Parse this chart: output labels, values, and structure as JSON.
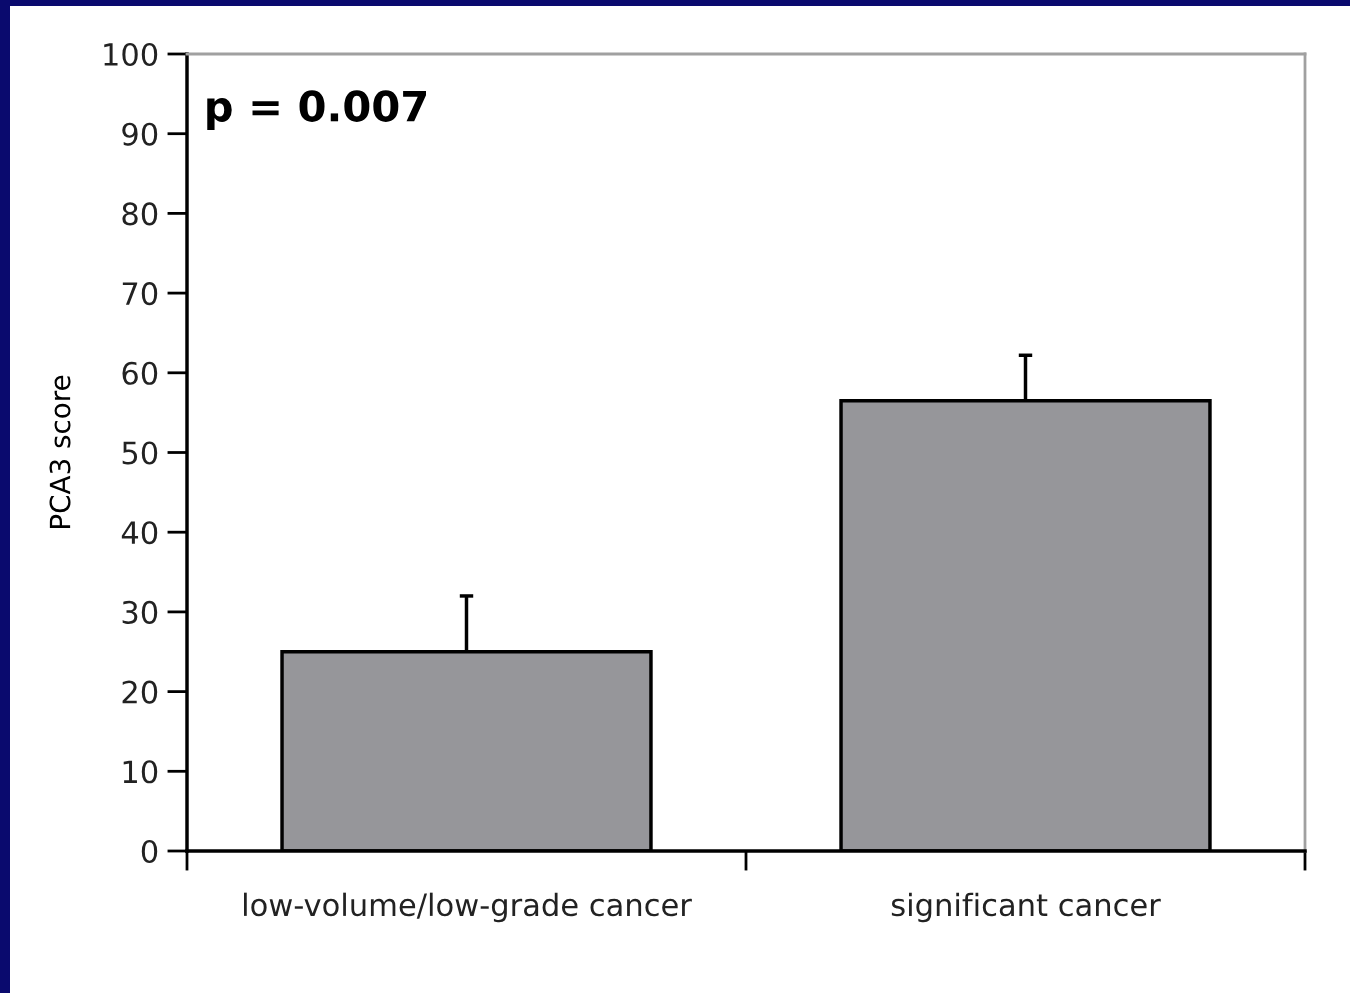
{
  "chart_data": {
    "type": "bar",
    "categories": [
      "low-volume/low-grade cancer",
      "significant cancer"
    ],
    "values": [
      25,
      56.5
    ],
    "errors": [
      [
        25,
        32
      ],
      [
        56.5,
        62.2
      ]
    ],
    "color": "#96969a",
    "ylabel": "PCA3 score",
    "ylim": [
      0,
      100
    ],
    "yticks": [
      0,
      10,
      20,
      30,
      40,
      50,
      60,
      70,
      80,
      90,
      100
    ],
    "grid": false,
    "annotations": [
      "p = 0.007"
    ]
  }
}
